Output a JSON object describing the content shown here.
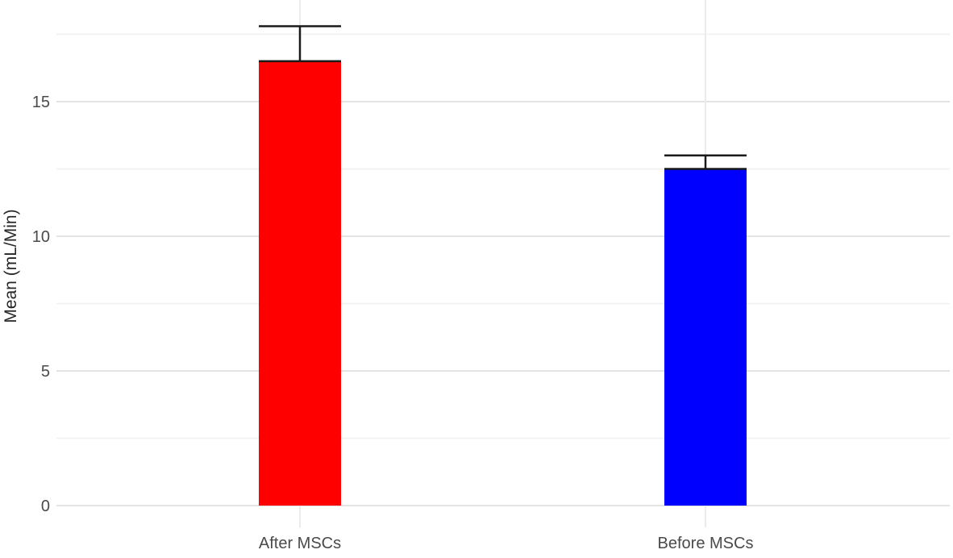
{
  "figure": {
    "background": "#ffffff",
    "title": ""
  },
  "chart_data": {
    "type": "bar",
    "title": "",
    "categories": [
      "After MSCs",
      "Before MSCs"
    ],
    "values": [
      16.5,
      12.5
    ],
    "error_bars": {
      "upper": [
        17.8,
        13.0
      ],
      "lower_cap_at_mean": true
    },
    "bar_colors": [
      "#ff0000",
      "#0000ff"
    ],
    "error_color": "#1a1a1a",
    "xlabel": "",
    "ylabel": "Mean (mL/Min)",
    "ylim": [
      0,
      18.8
    ],
    "yticks": [
      0,
      5,
      10,
      15
    ],
    "ytick_labels": [
      "0",
      "5",
      "10",
      "15"
    ],
    "yminor": [
      2.5,
      7.5,
      12.5,
      17.5
    ],
    "grid": {
      "horizontal_major": true,
      "horizontal_minor": true,
      "vertical_category_lines": true
    },
    "legend": "none"
  },
  "styles": {
    "grid_major_color": "#e4e4e4",
    "grid_minor_color": "#f1f1f1",
    "grid_vertical_color": "#ebebeb",
    "tick_label_color": "#4a4a4a",
    "axis_title_color": "#262626",
    "x_label_color": "#4a4a4a"
  }
}
